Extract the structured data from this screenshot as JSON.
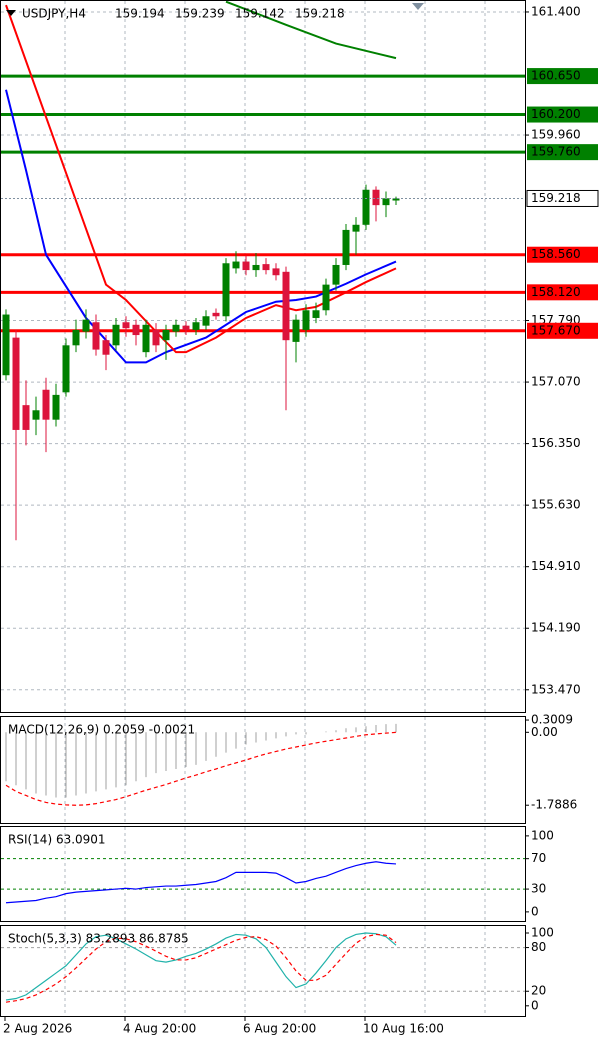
{
  "chart_data": [
    {
      "type": "candlestick",
      "title": "USDJPY,H4",
      "grid": true,
      "categories": [
        "2 Aug 2026",
        null,
        null,
        null,
        null,
        null,
        null,
        null,
        null,
        null,
        null,
        null,
        "4 Aug 20:00",
        null,
        null,
        null,
        null,
        null,
        null,
        null,
        null,
        null,
        null,
        null,
        "6 Aug 20:00",
        null,
        null,
        null,
        null,
        null,
        null,
        null,
        null,
        null,
        null,
        null,
        "10 Aug 16:00",
        null,
        null,
        null
      ],
      "open": [
        157.15,
        157.59,
        156.8,
        156.63,
        156.98,
        156.63,
        156.95,
        157.5,
        157.66,
        157.77,
        157.56,
        157.5,
        157.77,
        157.74,
        157.42,
        157.68,
        157.56,
        157.66,
        157.73,
        157.68,
        157.73,
        157.88,
        157.84,
        158.4,
        158.48,
        158.38,
        158.45,
        158.4,
        158.36,
        157.54,
        157.68,
        157.82,
        157.91,
        158.21,
        158.44,
        158.83,
        158.91,
        159.32,
        159.14,
        159.194
      ],
      "high": [
        157.92,
        157.68,
        157.09,
        156.9,
        157.12,
        157.05,
        157.58,
        157.8,
        157.92,
        157.86,
        157.62,
        157.82,
        157.84,
        157.8,
        157.8,
        157.76,
        157.74,
        157.8,
        157.78,
        157.82,
        157.91,
        157.93,
        158.52,
        158.6,
        158.55,
        158.58,
        158.52,
        158.46,
        158.42,
        157.86,
        157.98,
        158.0,
        158.28,
        158.52,
        158.92,
        159.0,
        159.38,
        159.36,
        159.3,
        159.239
      ],
      "low": [
        157.09,
        155.22,
        156.33,
        156.45,
        156.25,
        156.55,
        156.9,
        157.42,
        157.58,
        157.38,
        157.21,
        157.44,
        157.6,
        157.5,
        157.36,
        157.42,
        157.33,
        157.6,
        157.62,
        157.62,
        157.68,
        157.8,
        157.78,
        158.34,
        158.32,
        158.3,
        158.33,
        158.26,
        156.74,
        157.3,
        157.6,
        157.76,
        157.85,
        158.14,
        158.38,
        158.56,
        158.85,
        158.95,
        159.0,
        159.142
      ],
      "close": [
        157.86,
        156.51,
        156.51,
        156.74,
        156.63,
        156.92,
        157.5,
        157.68,
        157.8,
        157.45,
        157.39,
        157.74,
        157.7,
        157.62,
        157.74,
        157.5,
        157.68,
        157.74,
        157.68,
        157.77,
        157.84,
        157.84,
        158.46,
        158.48,
        158.38,
        158.44,
        158.38,
        158.32,
        157.56,
        157.8,
        157.91,
        157.91,
        158.21,
        158.44,
        158.85,
        158.91,
        159.32,
        159.14,
        159.22,
        159.218
      ],
      "up_color": "#008000",
      "down_color": "#dc143c",
      "moving_averages": [
        {
          "color": "#0000ff",
          "x": [
            0,
            2,
            4,
            8,
            12,
            14,
            16,
            20,
            24,
            27,
            29,
            31,
            34,
            36,
            39
          ],
          "values": [
            160.49,
            159.55,
            158.56,
            157.82,
            157.3,
            157.3,
            157.42,
            157.59,
            157.89,
            158.01,
            158.03,
            158.07,
            158.22,
            158.33,
            158.48
          ]
        },
        {
          "color": "#ff0000",
          "x": [
            0,
            10,
            12,
            15,
            17,
            18,
            21,
            24,
            27,
            29,
            31,
            34,
            36,
            39
          ],
          "values": [
            161.48,
            158.21,
            158.03,
            157.66,
            157.42,
            157.42,
            157.59,
            157.82,
            157.97,
            157.91,
            157.95,
            158.12,
            158.24,
            158.4
          ]
        },
        {
          "color": "#008000",
          "x": [
            22,
            28,
            33,
            39
          ],
          "values": [
            161.52,
            161.25,
            161.03,
            160.86
          ]
        }
      ],
      "levels": [
        {
          "value": 160.65,
          "label": "160.650",
          "color": "#008000"
        },
        {
          "value": 160.2,
          "label": "160.200",
          "color": "#008000"
        },
        {
          "value": 159.76,
          "label": "159.760",
          "color": "#008000"
        },
        {
          "value": 158.56,
          "label": "158.560",
          "color": "#ff0000"
        },
        {
          "value": 158.12,
          "label": "158.120",
          "color": "#ff0000"
        },
        {
          "value": 157.67,
          "label": "157.670",
          "color": "#ff0000"
        }
      ],
      "ylim": [
        153.21,
        161.54
      ],
      "yticks": [
        {
          "value": 161.4,
          "label": "161.400"
        },
        {
          "value": 159.96,
          "label": "159.960"
        },
        {
          "value": 157.79,
          "label": "157.790"
        },
        {
          "value": 157.07,
          "label": "157.070"
        },
        {
          "value": 156.35,
          "label": "156.350"
        },
        {
          "value": 155.63,
          "label": "155.630"
        },
        {
          "value": 154.91,
          "label": "154.910"
        },
        {
          "value": 154.19,
          "label": "154.190"
        },
        {
          "value": 153.47,
          "label": "153.470"
        }
      ]
    },
    {
      "type": "macd",
      "title": "MACD(12,26,9) 0.2059 -0.0021",
      "bar_color": "#a0a0a0",
      "values": [
        -1.2,
        -1.3,
        -1.4,
        -1.5,
        -1.55,
        -1.6,
        -1.6,
        -1.55,
        -1.5,
        -1.45,
        -1.4,
        -1.35,
        -1.3,
        -1.2,
        -1.1,
        -1.0,
        -0.95,
        -0.9,
        -0.85,
        -0.8,
        -0.7,
        -0.6,
        -0.5,
        -0.4,
        -0.3,
        -0.25,
        -0.2,
        -0.15,
        -0.1,
        -0.05,
        -0.05,
        0,
        0.02,
        0.05,
        0.1,
        0.12,
        0.15,
        0.18,
        0.2,
        0.2059
      ],
      "series": [
        {
          "color": "#ff0000",
          "dashed": true,
          "values": [
            -1.3,
            -1.45,
            -1.55,
            -1.65,
            -1.72,
            -1.76,
            -1.78,
            -1.79,
            -1.78,
            -1.75,
            -1.7,
            -1.65,
            -1.58,
            -1.5,
            -1.42,
            -1.35,
            -1.28,
            -1.2,
            -1.12,
            -1.05,
            -0.97,
            -0.9,
            -0.82,
            -0.75,
            -0.68,
            -0.6,
            -0.53,
            -0.47,
            -0.41,
            -0.36,
            -0.31,
            -0.26,
            -0.22,
            -0.18,
            -0.14,
            -0.1,
            -0.06,
            -0.04,
            -0.02,
            -0.0021
          ]
        }
      ],
      "ylim": [
        -2.225,
        0.4
      ],
      "yticks": [
        0.3009,
        {
          "value": 0,
          "label": "0.00"
        },
        -1.7886
      ]
    },
    {
      "type": "line",
      "title": "RSI(14) 63.0901",
      "series": [
        {
          "color": "#0000ff",
          "values": [
            12,
            13,
            14,
            15,
            18,
            20,
            24,
            26,
            27,
            28,
            29,
            30,
            31,
            30,
            32,
            33,
            34,
            34,
            35,
            36,
            38,
            40,
            45,
            52,
            52,
            52,
            52,
            51,
            45,
            38,
            40,
            44,
            47,
            52,
            57,
            61,
            64,
            66,
            64,
            63.0901
          ]
        }
      ],
      "levels": [
        {
          "value": 70,
          "color": "#008000"
        },
        {
          "value": 30,
          "color": "#008000"
        }
      ],
      "ylim": [
        -12,
        113
      ],
      "yticks": [
        100,
        70,
        30,
        0
      ]
    },
    {
      "type": "line",
      "title": "Stoch(5,3,3) 83.2893 86.8785",
      "series": [
        {
          "color": "#20b2aa",
          "values": [
            8,
            10,
            15,
            25,
            35,
            45,
            55,
            70,
            85,
            95,
            97,
            92,
            85,
            78,
            70,
            62,
            60,
            63,
            68,
            72,
            78,
            85,
            93,
            98,
            97,
            92,
            80,
            60,
            40,
            25,
            30,
            45,
            62,
            80,
            92,
            98,
            100,
            99,
            95,
            83.2893
          ]
        },
        {
          "color": "#ff0000",
          "dashed": true,
          "values": [
            5,
            7,
            10,
            15,
            22,
            30,
            40,
            52,
            65,
            78,
            88,
            93,
            92,
            88,
            82,
            75,
            68,
            63,
            63,
            66,
            72,
            78,
            84,
            90,
            94,
            95,
            91,
            82,
            66,
            48,
            35,
            35,
            42,
            57,
            72,
            86,
            95,
            98,
            97,
            86.8785
          ]
        }
      ],
      "levels": [
        {
          "value": 80,
          "color": "#a0a0a0"
        },
        {
          "value": 20,
          "color": "#a0a0a0"
        }
      ],
      "ylim": [
        -14,
        111
      ],
      "yticks": [
        100,
        80,
        20,
        0
      ]
    }
  ]
}
